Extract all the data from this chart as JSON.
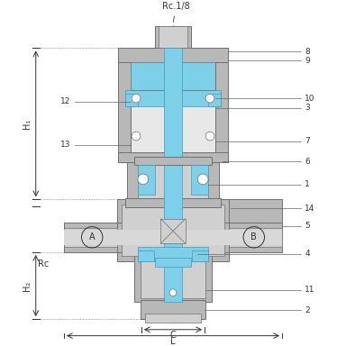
{
  "bg_color": "#ffffff",
  "body_color": "#b8b8b8",
  "body_light": "#d0d0d0",
  "body_dark": "#909090",
  "body_edge": "#707070",
  "blue_fill": "#7ecfe8",
  "blue_edge": "#3a9dbf",
  "text_color": "#333333",
  "dim_color": "#333333",
  "labels": {
    "Rc18": "Rc.1/8",
    "H1": "H₁",
    "H2": "H₂",
    "Rc": "Rc",
    "C": "C",
    "L": "L",
    "A": "Ⓐ",
    "B": "Ⓑ"
  },
  "part_numbers_right": {
    "8": 0.88,
    "9": 0.845,
    "10": 0.808,
    "3": 0.768,
    "7": 0.725,
    "6": 0.668,
    "1": 0.628,
    "14": 0.582,
    "5": 0.535
  },
  "part_numbers_left": {
    "12": 0.76,
    "13": 0.715
  },
  "part_numbers_bottom_right": {
    "4": 0.435,
    "11": 0.372,
    "2": 0.318
  }
}
